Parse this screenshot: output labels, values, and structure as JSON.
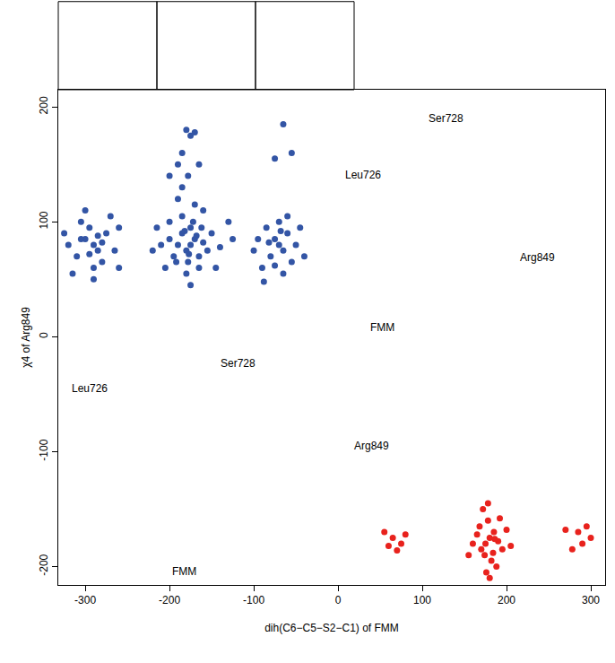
{
  "chart_data": {
    "type": "scatter",
    "x_label": "dih(C6−C5−S2−C1) of FMM",
    "y_label": "χ4 of Arg849",
    "xlim": [
      -332,
      317
    ],
    "ylim": [
      -216,
      215
    ],
    "xticks": [
      -300,
      -200,
      -100,
      0,
      100,
      200,
      300
    ],
    "yticks": [
      -200,
      -100,
      0,
      100,
      200
    ],
    "grid": false,
    "marker": "circle",
    "series": [
      {
        "color": "#3355a5",
        "x": [
          -300,
          -290,
          -285,
          -295,
          -310,
          -275,
          -280,
          -305,
          -320,
          -265,
          -290,
          -300,
          -270,
          -285,
          -315,
          -260,
          -295,
          -280,
          -325,
          -305,
          -290,
          -260,
          -175,
          -170,
          -180,
          -165,
          -185,
          -190,
          -160,
          -175,
          -178,
          -172,
          -195,
          -155,
          -200,
          -150,
          -185,
          -165,
          -210,
          -140,
          -180,
          -170,
          -200,
          -145,
          -220,
          -125,
          -190,
          -160,
          -205,
          -175,
          -215,
          -130,
          -185,
          -168,
          -182,
          -177,
          -162,
          -192,
          -180,
          -175,
          -170,
          -185,
          -190,
          -165,
          -178,
          -200,
          -70,
          -75,
          -65,
          -80,
          -60,
          -85,
          -55,
          -90,
          -70,
          -50,
          -95,
          -65,
          -45,
          -100,
          -75,
          -60,
          -82,
          -68,
          -40,
          -88,
          -65,
          -75,
          -55
        ],
        "y": [
          85,
          80,
          75,
          95,
          70,
          90,
          65,
          100,
          80,
          75,
          60,
          110,
          105,
          88,
          55,
          60,
          72,
          82,
          90,
          85,
          50,
          95,
          80,
          85,
          75,
          70,
          90,
          80,
          82,
          95,
          65,
          100,
          70,
          75,
          85,
          90,
          105,
          60,
          80,
          78,
          55,
          115,
          100,
          60,
          75,
          85,
          120,
          110,
          60,
          45,
          95,
          100,
          130,
          88,
          92,
          72,
          95,
          65,
          180,
          175,
          178,
          160,
          150,
          150,
          140,
          140,
          80,
          85,
          75,
          70,
          90,
          95,
          65,
          60,
          100,
          80,
          85,
          55,
          95,
          75,
          62,
          105,
          82,
          92,
          70,
          48,
          185,
          155,
          160
        ]
      },
      {
        "color": "#e8221d",
        "x": [
          180,
          175,
          185,
          170,
          190,
          178,
          182,
          165,
          195,
          172,
          188,
          160,
          200,
          176,
          184,
          168,
          192,
          180,
          155,
          205,
          174,
          186,
          178,
          55,
          65,
          75,
          60,
          80,
          70,
          270,
          285,
          290,
          300,
          278,
          295
        ],
        "y": [
          -175,
          -180,
          -170,
          -185,
          -178,
          -160,
          -195,
          -172,
          -185,
          -150,
          -200,
          -180,
          -168,
          -205,
          -188,
          -165,
          -158,
          -210,
          -190,
          -182,
          -190,
          -176,
          -145,
          -170,
          -175,
          -180,
          -182,
          -172,
          -186,
          -168,
          -170,
          -180,
          -175,
          -185,
          -165
        ]
      }
    ],
    "annotations": [
      "Ser728",
      "Leu726",
      "Arg849",
      "FMM",
      "Ser728",
      "Leu726",
      "Arg849",
      "FMM"
    ]
  }
}
